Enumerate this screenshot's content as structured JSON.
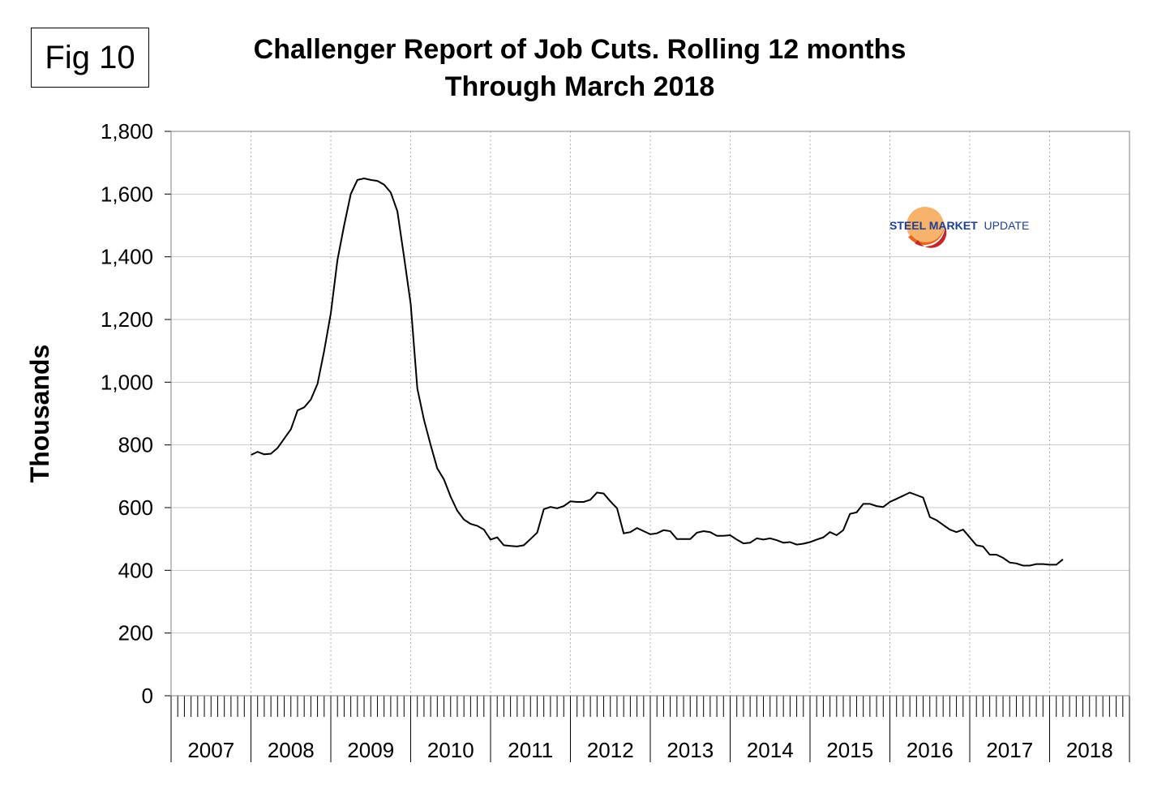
{
  "figure_label": "Fig 10",
  "logo": {
    "text_bold": "STEEL MARKET",
    "text_regular": "UPDATE"
  },
  "colors": {
    "line": "#000000",
    "grid": "#c8c8c8",
    "logo_blue": "#1f3f8f",
    "logo_orange": "#e8641a",
    "logo_red": "#c0282d"
  },
  "chart_data": {
    "type": "line",
    "title_line1": "Challenger Report of Job Cuts. Rolling 12 months",
    "title_line2": "Through March 2018",
    "ylabel": "Thousands",
    "xlabel": "",
    "ylim": [
      0,
      1800
    ],
    "ytick_step": 200,
    "grid": true,
    "x_years": [
      "2007",
      "2008",
      "2009",
      "2010",
      "2011",
      "2012",
      "2013",
      "2014",
      "2015",
      "2016",
      "2017",
      "2018"
    ],
    "series": [
      {
        "name": "Job Cuts (rolling 12 months)",
        "start": "2008-01",
        "values": [
          768,
          778,
          770,
          772,
          790,
          820,
          850,
          910,
          920,
          945,
          995,
          1100,
          1220,
          1390,
          1500,
          1600,
          1645,
          1650,
          1645,
          1642,
          1630,
          1605,
          1545,
          1400,
          1250,
          980,
          880,
          800,
          725,
          690,
          635,
          590,
          562,
          548,
          542,
          530,
          498,
          505,
          480,
          478,
          476,
          480,
          500,
          520,
          595,
          602,
          598,
          605,
          620,
          618,
          618,
          625,
          648,
          645,
          620,
          598,
          518,
          522,
          535,
          525,
          515,
          518,
          528,
          525,
          500,
          500,
          500,
          520,
          525,
          522,
          510,
          510,
          512,
          498,
          486,
          488,
          502,
          498,
          502,
          496,
          488,
          490,
          482,
          485,
          490,
          498,
          505,
          522,
          512,
          528,
          580,
          585,
          612,
          612,
          605,
          602,
          618,
          628,
          638,
          648,
          640,
          632,
          570,
          560,
          545,
          530,
          522,
          530,
          505,
          480,
          476,
          450,
          450,
          440,
          425,
          422,
          415,
          415,
          420,
          420,
          418,
          418,
          435
        ]
      }
    ]
  }
}
